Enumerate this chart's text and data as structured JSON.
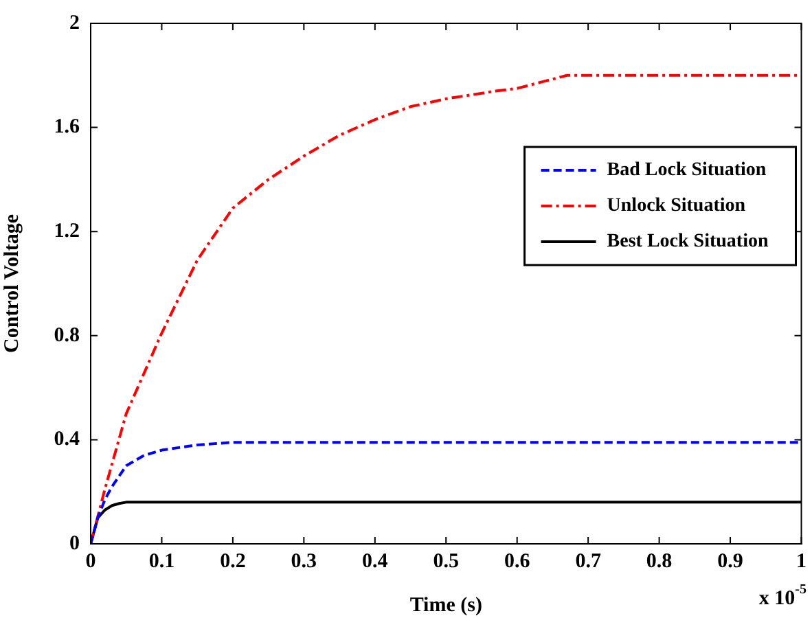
{
  "chart_data": {
    "type": "line",
    "xlabel": "Time (s)",
    "ylabel": "Control Voltage",
    "annotations": [
      "x 10$^{-5}$"
    ],
    "xlim": [
      0,
      1
    ],
    "xticks": [
      0,
      0.1,
      0.2,
      0.3,
      0.4,
      0.5,
      0.6,
      0.7,
      0.8,
      0.9,
      1
    ],
    "ylim": [
      0,
      2
    ],
    "yticks": [
      0,
      0.4,
      0.8,
      1.2,
      1.6,
      2
    ],
    "legend": "top right",
    "marker": "none",
    "series": [
      {
        "name": "Bad Lock Situation",
        "color": "#0000ff",
        "line_style": "dashed",
        "x": [
          0,
          0.01,
          0.02,
          0.03,
          0.05,
          0.075,
          0.1,
          0.15,
          0.2,
          1
        ],
        "values": [
          0,
          0.1,
          0.17,
          0.22,
          0.3,
          0.34,
          0.36,
          0.38,
          0.39,
          0.39
        ]
      },
      {
        "name": "Unlock Situation",
        "color": "#ff0000",
        "line_style": "dashdot",
        "x": [
          0,
          0.02,
          0.05,
          0.1,
          0.15,
          0.2,
          0.25,
          0.3,
          0.35,
          0.4,
          0.45,
          0.5,
          0.57,
          0.6,
          0.67,
          1
        ],
        "values": [
          0,
          0.21,
          0.5,
          0.81,
          1.09,
          1.29,
          1.4,
          1.49,
          1.57,
          1.63,
          1.68,
          1.71,
          1.74,
          1.75,
          1.8,
          1.8
        ]
      },
      {
        "name": "Best Lock Situation",
        "color": "#000000",
        "line_style": "solid",
        "x": [
          0,
          0.01,
          0.02,
          0.03,
          0.04,
          0.05,
          1
        ],
        "values": [
          0,
          0.1,
          0.13,
          0.147,
          0.155,
          0.16,
          0.16
        ]
      }
    ]
  }
}
